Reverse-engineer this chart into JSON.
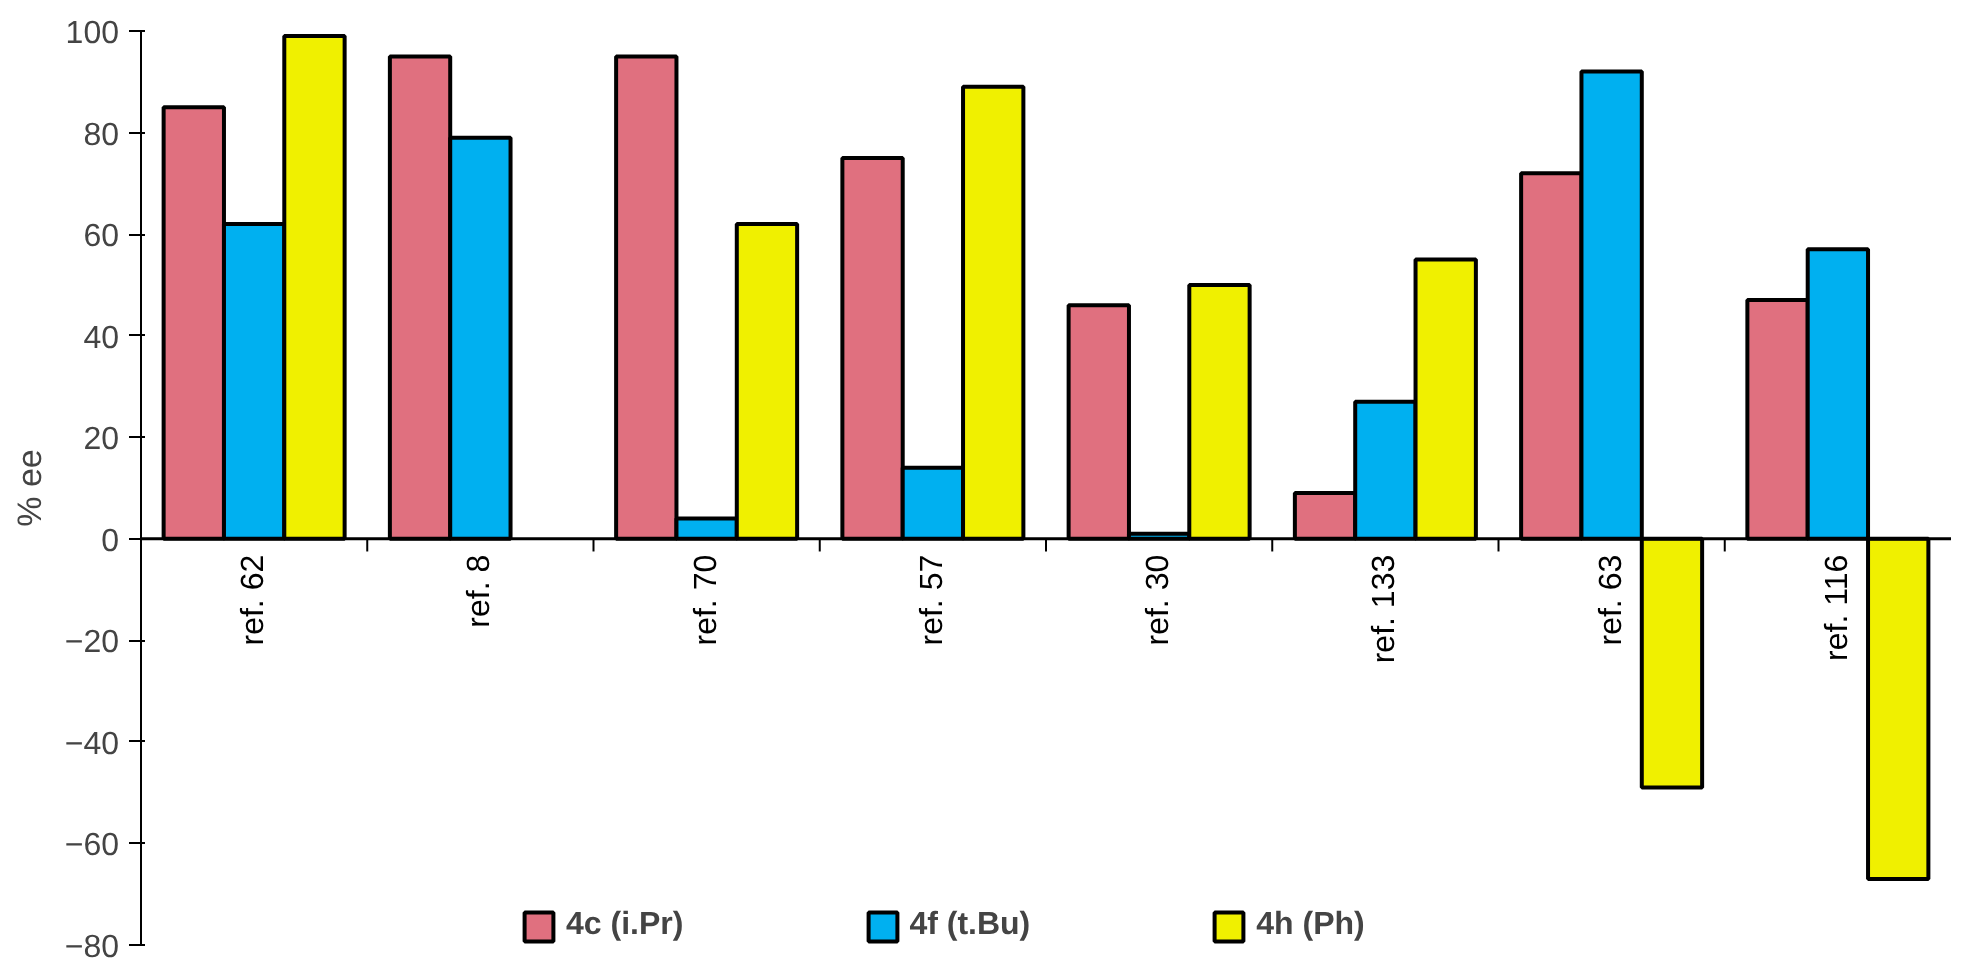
{
  "chart_data": {
    "type": "bar",
    "ylabel": "% ee",
    "categories": [
      "ref. 62",
      "ref. 8",
      "ref. 70",
      "ref. 57",
      "ref. 30",
      "ref. 133",
      "ref. 63",
      "ref. 116"
    ],
    "series": [
      {
        "name": "4c (i.Pr)",
        "color": "#e0707f",
        "values": [
          85,
          95,
          95,
          75,
          46,
          9,
          72,
          47
        ]
      },
      {
        "name": "4f (t.Bu)",
        "color": "#00b0f0",
        "values": [
          62,
          79,
          4,
          14,
          1,
          27,
          92,
          57
        ]
      },
      {
        "name": "4h (Ph)",
        "color": "#f0f000",
        "values": [
          99,
          null,
          62,
          89,
          50,
          55,
          -49,
          -67
        ]
      }
    ],
    "ylim": [
      -80,
      100
    ],
    "yticks": [
      -80,
      -60,
      -40,
      -20,
      0,
      20,
      40,
      60,
      80,
      100
    ],
    "grid": false,
    "legend": "bottom"
  }
}
